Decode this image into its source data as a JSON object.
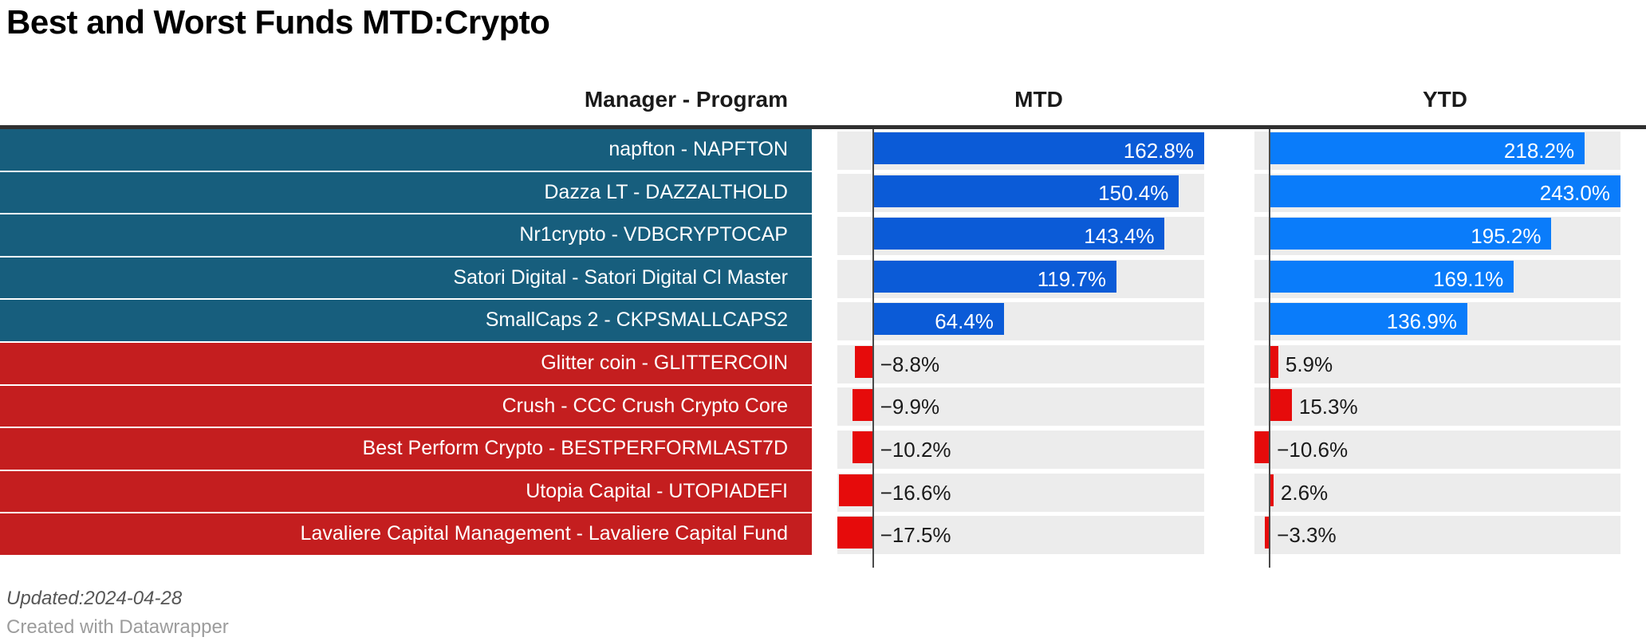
{
  "title": "Best and Worst Funds MTD:Crypto",
  "header": {
    "manager_program": "Manager - Program",
    "mtd": "MTD",
    "ytd": "YTD"
  },
  "footer": {
    "updated": "Updated:2024-04-28",
    "credit": "Created with Datawrapper"
  },
  "colors": {
    "best_row_bg": "#175e7d",
    "worst_row_bg": "#c41e1f",
    "mtd_bar_blue": "#0b5bd7",
    "ytd_bar_blue": "#0a7cfa",
    "worst_bar_red": "#e60b0b",
    "bar_track": "#ececec",
    "axis_line": "#4a4a4a",
    "table_top_border": "#303030",
    "label_text": "#ffffff",
    "value_text_dark": "#1a1a1a"
  },
  "chart_data": {
    "type": "bar",
    "title": "Best and Worst Funds MTD:Crypto",
    "orientation": "horizontal",
    "categories": [
      "napfton - NAPFTON",
      "Dazza LT - DAZZALTHOLD",
      "Nr1crypto - VDBCRYPTOCAP",
      "Satori Digital - Satori Digital Cl Master",
      "SmallCaps 2 - CKPSMALLCAPS2",
      "Glitter coin - GLITTERCOIN",
      "Crush - CCC Crush Crypto Core",
      "Best Perform Crypto - BESTPERFORMLAST7D",
      "Utopia Capital - UTOPIADEFI",
      "Lavaliere Capital Management - Lavaliere Capital Fund"
    ],
    "row_groups": [
      "best",
      "best",
      "best",
      "best",
      "best",
      "worst",
      "worst",
      "worst",
      "worst",
      "worst"
    ],
    "series": [
      {
        "name": "MTD",
        "values": [
          162.8,
          150.4,
          143.4,
          119.7,
          64.4,
          -8.8,
          -9.9,
          -10.2,
          -16.6,
          -17.5
        ],
        "labels": [
          "162.8%",
          "150.4%",
          "143.4%",
          "119.7%",
          "64.4%",
          "−8.8%",
          "−9.9%",
          "−10.2%",
          "−16.6%",
          "−17.5%"
        ],
        "range": [
          -17.5,
          162.8
        ]
      },
      {
        "name": "YTD",
        "values": [
          218.2,
          243.0,
          195.2,
          169.1,
          136.9,
          5.9,
          15.3,
          -10.6,
          2.6,
          -3.3
        ],
        "labels": [
          "218.2%",
          "243.0%",
          "195.2%",
          "169.1%",
          "136.9%",
          "5.9%",
          "15.3%",
          "−10.6%",
          "2.6%",
          "−3.3%"
        ],
        "range": [
          -10.6,
          243.0
        ]
      }
    ],
    "legend": "none",
    "grid": "off",
    "notes": "each value column has its own scale from column min to column max; zero axis marked with vertical line"
  }
}
